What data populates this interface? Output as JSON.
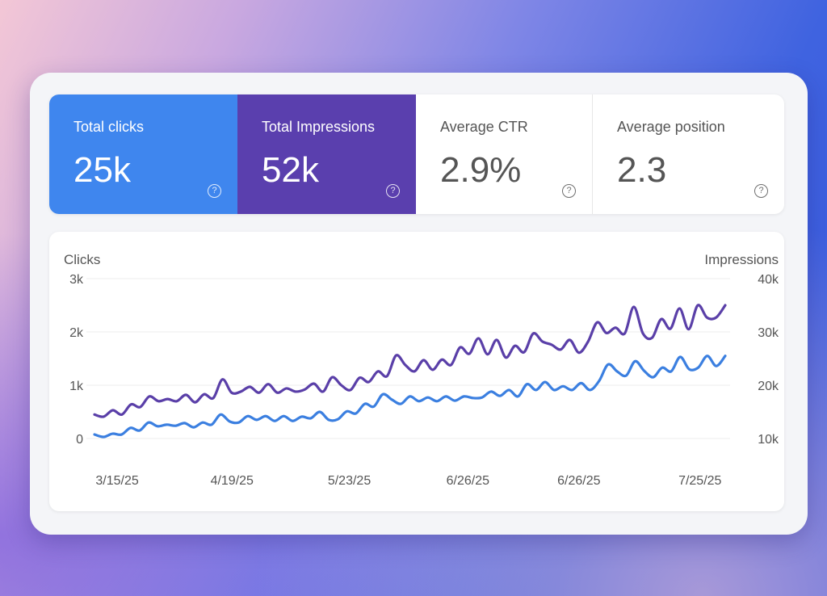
{
  "tiles": [
    {
      "label": "Total clicks",
      "value": "25k",
      "help": "?",
      "bg": "#3f86ee"
    },
    {
      "label": "Total Impressions",
      "value": "52k",
      "help": "?",
      "bg": "#5a3fae"
    },
    {
      "label": "Average CTR",
      "value": "2.9%",
      "help": "?"
    },
    {
      "label": "Average position",
      "value": "2.3",
      "help": "?"
    }
  ],
  "chart_data": {
    "type": "line",
    "left_axis_label": "Clicks",
    "right_axis_label": "Impressions",
    "left_ylim": [
      0,
      3000
    ],
    "right_ylim": [
      10000,
      40000
    ],
    "left_ticks": [
      "0",
      "1k",
      "2k",
      "3k"
    ],
    "right_ticks": [
      "10k",
      "20k",
      "30k",
      "40k"
    ],
    "x_tick_labels": [
      "3/15/25",
      "4/19/25",
      "5/23/25",
      "6/26/25",
      "6/26/25",
      "7/25/25"
    ],
    "grid": true,
    "series": [
      {
        "axis": "left",
        "color": "#3b7fe0",
        "values": [
          76,
          30,
          90,
          75,
          200,
          150,
          300,
          230,
          260,
          240,
          290,
          210,
          300,
          260,
          450,
          320,
          300,
          420,
          350,
          420,
          330,
          420,
          330,
          410,
          380,
          500,
          350,
          360,
          510,
          470,
          650,
          600,
          830,
          730,
          650,
          790,
          700,
          770,
          700,
          790,
          710,
          790,
          760,
          770,
          880,
          800,
          910,
          790,
          1020,
          910,
          1060,
          910,
          980,
          910,
          1040,
          910,
          1080,
          1390,
          1260,
          1180,
          1450,
          1270,
          1150,
          1330,
          1260,
          1530,
          1300,
          1330,
          1550,
          1360,
          1550
        ]
      },
      {
        "axis": "right",
        "color": "#5a3fa8",
        "values": [
          14500,
          14100,
          15300,
          14500,
          16400,
          15900,
          17900,
          17000,
          17400,
          17000,
          18200,
          16800,
          18300,
          17600,
          21100,
          18600,
          18800,
          19700,
          18600,
          20200,
          18600,
          19400,
          18800,
          19200,
          20300,
          18800,
          21500,
          20000,
          19100,
          21400,
          20600,
          22600,
          21700,
          25600,
          23800,
          22600,
          24700,
          22900,
          24800,
          23800,
          27100,
          25900,
          28800,
          25800,
          28500,
          25200,
          27400,
          26200,
          29700,
          28200,
          27600,
          26700,
          28500,
          26100,
          28200,
          31800,
          29800,
          30800,
          29700,
          34700,
          29700,
          28900,
          32400,
          30600,
          34400,
          30500,
          35000,
          32700,
          32700,
          35000
        ]
      }
    ]
  }
}
